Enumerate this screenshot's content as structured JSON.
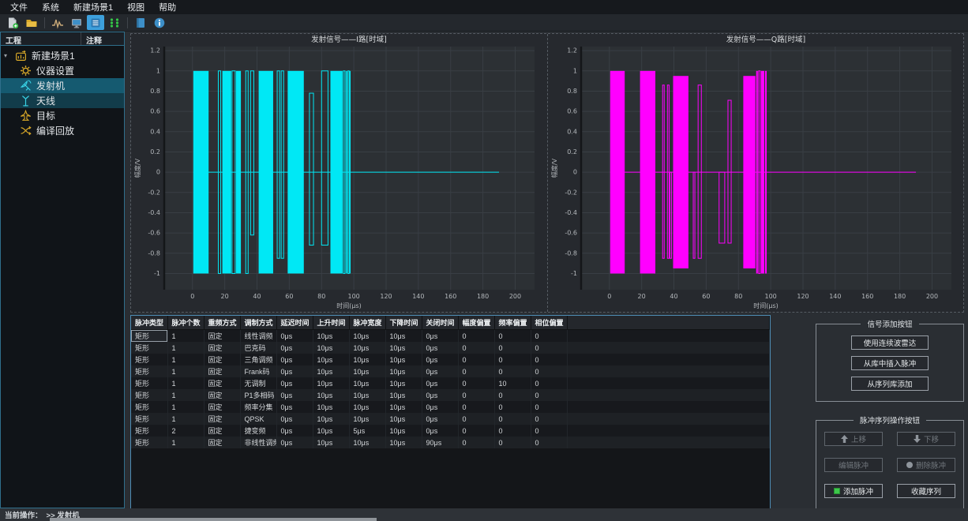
{
  "menubar": {
    "items": [
      "文件",
      "系统",
      "新建场景1",
      "视图",
      "帮助"
    ]
  },
  "toolbar": {
    "icons": [
      "new-file-icon",
      "open-folder-icon",
      "waveform-icon",
      "display-icon",
      "list-view-icon",
      "expand-icon",
      "panel-icon",
      "info-icon"
    ],
    "active_icon": "list-view-icon"
  },
  "sidebar": {
    "headers": [
      "工程",
      "注释"
    ],
    "items": [
      {
        "icon": "scene-icon",
        "label": "新建场景1",
        "selected": false
      },
      {
        "icon": "gear-icon",
        "label": "仪器设置",
        "selected": false
      },
      {
        "icon": "transmitter-icon",
        "label": "发射机",
        "selected": true
      },
      {
        "icon": "antenna-icon",
        "label": "天线",
        "selected": true
      },
      {
        "icon": "target-icon",
        "label": "目标",
        "selected": false
      },
      {
        "icon": "replay-icon",
        "label": "编译回放",
        "selected": false
      }
    ]
  },
  "chart_data": [
    {
      "type": "line",
      "title": "发射信号——I路[时域]",
      "xlabel": "时间(μs)",
      "ylabel": "幅度/V",
      "color": "#00e8f5",
      "xlim": [
        -18,
        212
      ],
      "ylim": [
        -1.16,
        1.24
      ],
      "xticks": [
        0,
        20,
        40,
        60,
        80,
        100,
        120,
        140,
        160,
        180,
        200
      ],
      "yticks": [
        1.2,
        1,
        0.8,
        0.6,
        0.4,
        0.2,
        0,
        -0.2,
        -0.4,
        -0.6,
        -0.8,
        -1
      ],
      "grid": true,
      "baseline": [
        0.5,
        190
      ],
      "bursts": [
        [
          0.5,
          10,
          1,
          -1,
          1
        ],
        [
          16,
          17.5,
          1,
          -1,
          0
        ],
        [
          18.5,
          24,
          1,
          -1,
          1
        ],
        [
          24.5,
          26.5,
          1,
          -1,
          0
        ],
        [
          27,
          30,
          1,
          -1,
          1
        ],
        [
          33,
          34.5,
          1,
          -1,
          0
        ],
        [
          36,
          38,
          1,
          -0.62,
          0
        ],
        [
          41,
          50,
          1,
          -1,
          1
        ],
        [
          52.5,
          54,
          1,
          -0.85,
          0
        ],
        [
          55,
          56.5,
          1,
          -0.85,
          0
        ],
        [
          59,
          69,
          1,
          -1,
          1
        ],
        [
          72.5,
          75,
          0.78,
          -0.72,
          0
        ],
        [
          80,
          84,
          1,
          -0.72,
          0
        ],
        [
          85.5,
          93,
          1,
          -1,
          1
        ],
        [
          93.5,
          94.5,
          1,
          -1,
          0
        ],
        [
          95,
          95.8,
          1,
          -1,
          1
        ],
        [
          96.3,
          97.1,
          1,
          -1,
          0
        ],
        [
          97.3,
          98,
          1,
          -1,
          1
        ]
      ]
    },
    {
      "type": "line",
      "title": "发射信号——Q路[时域]",
      "xlabel": "时间(μs)",
      "ylabel": "幅度/V",
      "color": "#ff00ff",
      "xlim": [
        -18,
        212
      ],
      "ylim": [
        -1.16,
        1.24
      ],
      "xticks": [
        0,
        20,
        40,
        60,
        80,
        100,
        120,
        140,
        160,
        180,
        200
      ],
      "yticks": [
        1.2,
        1,
        0.8,
        0.6,
        0.4,
        0.2,
        0,
        -0.2,
        -0.4,
        -0.6,
        -0.8,
        -1
      ],
      "grid": true,
      "baseline": [
        0.5,
        190
      ],
      "bursts": [
        [
          0.5,
          9.5,
          1,
          -1,
          1
        ],
        [
          19,
          28.5,
          1,
          -1,
          1
        ],
        [
          33,
          34,
          0.86,
          -0.85,
          0
        ],
        [
          36,
          37,
          0.86,
          -0.85,
          0
        ],
        [
          37.5,
          38.5,
          0,
          -0.85,
          0
        ],
        [
          39.5,
          49,
          0.95,
          -0.95,
          1
        ],
        [
          52,
          53,
          0,
          -0.85,
          0
        ],
        [
          55,
          57,
          0.86,
          -0.85,
          0
        ],
        [
          68,
          71.5,
          0,
          -0.7,
          0
        ],
        [
          73.5,
          75.5,
          0.71,
          -0.7,
          0
        ],
        [
          83,
          90.5,
          0.95,
          -0.95,
          1
        ],
        [
          91,
          92,
          1,
          -1,
          1
        ],
        [
          92.5,
          93.5,
          1,
          -1,
          0
        ],
        [
          94,
          96,
          1,
          -1,
          1
        ],
        [
          96.5,
          97.5,
          1,
          -1,
          1
        ]
      ]
    }
  ],
  "table": {
    "columns": [
      "脉冲类型",
      "脉冲个数",
      "重频方式",
      "调制方式",
      "延迟时间",
      "上升时间",
      "脉冲宽度",
      "下降时间",
      "关闭时间",
      "幅度偏置",
      "频率偏置",
      "相位偏置"
    ],
    "rows": [
      [
        "矩形",
        "1",
        "固定",
        "线性调频",
        "0μs",
        "10μs",
        "10μs",
        "10μs",
        "0μs",
        "0",
        "0",
        "0"
      ],
      [
        "矩形",
        "1",
        "固定",
        "巴克码",
        "0μs",
        "10μs",
        "10μs",
        "10μs",
        "0μs",
        "0",
        "0",
        "0"
      ],
      [
        "矩形",
        "1",
        "固定",
        "三角调频",
        "0μs",
        "10μs",
        "10μs",
        "10μs",
        "0μs",
        "0",
        "0",
        "0"
      ],
      [
        "矩形",
        "1",
        "固定",
        "Frank码",
        "0μs",
        "10μs",
        "10μs",
        "10μs",
        "0μs",
        "0",
        "0",
        "0"
      ],
      [
        "矩形",
        "1",
        "固定",
        "无调制",
        "0μs",
        "10μs",
        "10μs",
        "10μs",
        "0μs",
        "0",
        "10",
        "0"
      ],
      [
        "矩形",
        "1",
        "固定",
        "P1多相码",
        "0μs",
        "10μs",
        "10μs",
        "10μs",
        "0μs",
        "0",
        "0",
        "0"
      ],
      [
        "矩形",
        "1",
        "固定",
        "频率分集",
        "0μs",
        "10μs",
        "10μs",
        "10μs",
        "0μs",
        "0",
        "0",
        "0"
      ],
      [
        "矩形",
        "1",
        "固定",
        "QPSK",
        "0μs",
        "10μs",
        "10μs",
        "10μs",
        "0μs",
        "0",
        "0",
        "0"
      ],
      [
        "矩形",
        "2",
        "固定",
        "捷变频",
        "0μs",
        "10μs",
        "5μs",
        "10μs",
        "0μs",
        "0",
        "0",
        "0"
      ],
      [
        "矩形",
        "1",
        "固定",
        "非线性调频",
        "0μs",
        "10μs",
        "10μs",
        "10μs",
        "90μs",
        "0",
        "0",
        "0"
      ]
    ],
    "selected_cell": {
      "row": 0,
      "col": 0
    }
  },
  "signal_add": {
    "legend": "信号添加按钮",
    "buttons": [
      "使用连续波雷达",
      "从库中插入脉冲",
      "从序列库添加"
    ]
  },
  "pulse_ops": {
    "legend": "脉冲序列操作按钮",
    "buttons": [
      {
        "label": "上移",
        "icon": "arrow-up-icon",
        "disabled": true
      },
      {
        "label": "下移",
        "icon": "arrow-down-icon",
        "disabled": true
      },
      {
        "label": "编辑脉冲",
        "icon": "",
        "disabled": true
      },
      {
        "label": "删除脉冲",
        "icon": "circle-icon",
        "disabled": true
      },
      {
        "label": "添加脉冲",
        "icon": "green-square-icon",
        "disabled": false
      },
      {
        "label": "收藏序列",
        "icon": "",
        "disabled": false
      }
    ]
  },
  "statusbar": {
    "label": "当前操作：",
    "value": ">> 发射机"
  },
  "colors": {
    "accent": "#3da0dc",
    "i_channel": "#00e8f5",
    "q_channel": "#ff00ff",
    "selection": "#155a70",
    "panel_border": "#4e8cb4"
  }
}
